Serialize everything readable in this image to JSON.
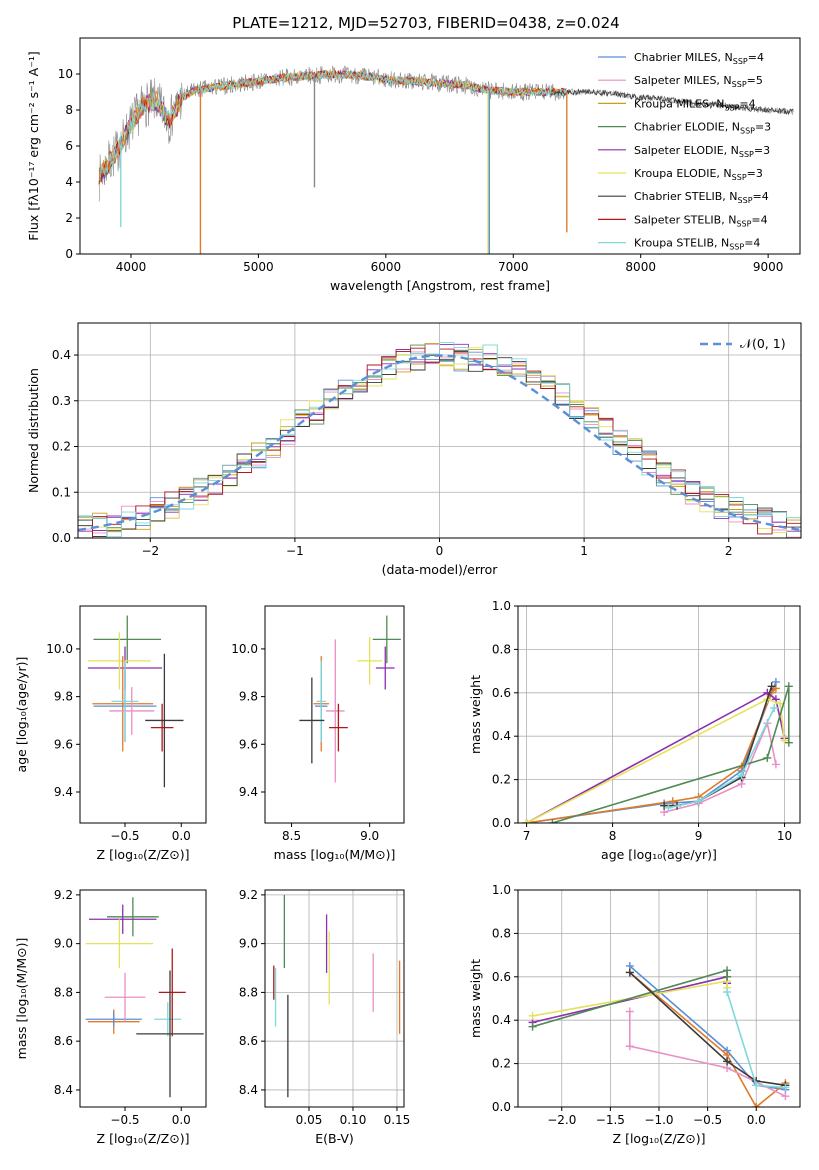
{
  "figure_title": "PLATE=1212, MJD=52703, FIBERID=0438, z=0.024",
  "colors": {
    "chabrier_miles": "#5b8fd6",
    "salpeter_miles": "#e98fc4",
    "kroupa_miles": "#c8a020",
    "chabrier_elodie": "#4f8a55",
    "salpeter_elodie": "#8e2eb0",
    "kroupa_elodie": "#e3e35a",
    "chabrier_stelib": "#3b3b3b",
    "salpeter_stelib": "#b01818",
    "kroupa_stelib": "#7fd8dc",
    "orange": "#e07a2a",
    "gray": "#888888",
    "gaussian": "#5b8fd6"
  },
  "chart_data": [
    {
      "id": "spectrum",
      "type": "line",
      "xlabel": "wavelength [Angstrom, rest frame]",
      "ylabel": "Flux [fλ10⁻¹⁷ erg cm⁻² s⁻¹ A⁻¹]",
      "xlim": [
        3600,
        9250
      ],
      "ylim": [
        0,
        12
      ],
      "xticks": [
        "4000",
        "5000",
        "6000",
        "7000",
        "8000",
        "9000"
      ],
      "yticks": [
        "0",
        "2",
        "4",
        "6",
        "8",
        "10"
      ],
      "legend_placement": "upper-right",
      "legend": [
        {
          "name": "Chabrier MILES, N",
          "sub": "SSP",
          "tail": "=4",
          "color_key": "chabrier_miles"
        },
        {
          "name": "Salpeter MILES, N",
          "sub": "SSP",
          "tail": "=5",
          "color_key": "salpeter_miles"
        },
        {
          "name": "Kroupa MILES, N",
          "sub": "SSP",
          "tail": "=4",
          "color_key": "kroupa_miles"
        },
        {
          "name": "Chabrier ELODIE, N",
          "sub": "SSP",
          "tail": "=3",
          "color_key": "chabrier_elodie"
        },
        {
          "name": "Salpeter ELODIE, N",
          "sub": "SSP",
          "tail": "=3",
          "color_key": "salpeter_elodie"
        },
        {
          "name": "Kroupa ELODIE, N",
          "sub": "SSP",
          "tail": "=3",
          "color_key": "kroupa_elodie"
        },
        {
          "name": "Chabrier STELIB, N",
          "sub": "SSP",
          "tail": "=4",
          "color_key": "chabrier_stelib"
        },
        {
          "name": "Salpeter STELIB, N",
          "sub": "SSP",
          "tail": "=4",
          "color_key": "salpeter_stelib"
        },
        {
          "name": "Kroupa STELIB, N",
          "sub": "SSP",
          "tail": "=4",
          "color_key": "kroupa_stelib"
        }
      ],
      "continuum": {
        "x": [
          3750,
          3800,
          3900,
          4000,
          4100,
          4200,
          4300,
          4400,
          4500,
          4600,
          4700,
          4800,
          5000,
          5200,
          5400,
          5600,
          5800,
          6000,
          6200,
          6400,
          6600,
          6800,
          7000,
          7200,
          7400,
          7600,
          7800,
          8000,
          8200,
          8400,
          8600,
          8800,
          9000,
          9200
        ],
        "y": [
          4.2,
          4.8,
          5.8,
          7.2,
          8.3,
          8.5,
          7.4,
          8.7,
          9.1,
          9.2,
          9.3,
          9.4,
          9.6,
          9.8,
          9.9,
          10.0,
          9.9,
          9.7,
          9.6,
          9.5,
          9.4,
          9.1,
          9.0,
          9.0,
          9.0,
          9.0,
          8.9,
          8.7,
          8.6,
          8.4,
          8.3,
          8.1,
          8.0,
          7.9
        ]
      },
      "observed_range": [
        3750,
        9200
      ],
      "model_range": [
        3750,
        7420
      ],
      "drops": [
        {
          "x": 4545,
          "y": 0.0,
          "series": "orange"
        },
        {
          "x": 6802,
          "y": 0.0,
          "series": "kroupa_elodie"
        },
        {
          "x": 6812,
          "y": 0.0,
          "series": "chabrier_miles"
        },
        {
          "x": 7420,
          "y": 1.2,
          "series": "orange"
        },
        {
          "x": 3920,
          "y": 1.5,
          "series": "kroupa_stelib"
        },
        {
          "x": 5440,
          "y": 3.7,
          "series": "gray"
        }
      ]
    },
    {
      "id": "residuals",
      "type": "histogram",
      "xlabel": "(data-model)/error",
      "ylabel": "Normed distribution",
      "xlim": [
        -2.5,
        2.5
      ],
      "ylim": [
        0,
        0.47
      ],
      "xticks": [
        "−2",
        "−1",
        "0",
        "1",
        "2"
      ],
      "yticks": [
        "0.0",
        "0.1",
        "0.2",
        "0.3",
        "0.4"
      ],
      "grid": true,
      "legend_placement": "upper-right",
      "gaussian_label": "𝒩(0, 1)",
      "bin_width": 0.1
    },
    {
      "id": "age_vs_z",
      "type": "errorbar",
      "xlabel": "Z [log₁₀(Z/Z⊙)]",
      "ylabel": "age  [log₁₀(age/yr)]",
      "xlim": [
        -0.9,
        0.22
      ],
      "ylim": [
        9.27,
        10.18
      ],
      "xticks": [
        "−0.5",
        "0.0"
      ],
      "yticks": [
        "9.4",
        "9.6",
        "9.8",
        "10.0"
      ],
      "points": [
        {
          "x": -0.48,
          "y": 10.04,
          "xerr": 0.3,
          "yerr": 0.1,
          "c": "chabrier_elodie"
        },
        {
          "x": -0.5,
          "y": 9.92,
          "xerr": 0.33,
          "yerr": 0.09,
          "c": "salpeter_elodie"
        },
        {
          "x": -0.55,
          "y": 9.95,
          "xerr": 0.28,
          "yerr": 0.12,
          "c": "kroupa_elodie"
        },
        {
          "x": -0.52,
          "y": 9.77,
          "xerr": 0.27,
          "yerr": 0.2,
          "c": "orange"
        },
        {
          "x": -0.5,
          "y": 9.76,
          "xerr": 0.28,
          "yerr": 0.15,
          "c": "chabrier_miles"
        },
        {
          "x": -0.44,
          "y": 9.74,
          "xerr": 0.2,
          "yerr": 0.1,
          "c": "salpeter_miles"
        },
        {
          "x": -0.5,
          "y": 9.78,
          "xerr": 0.12,
          "yerr": 0.17,
          "c": "kroupa_stelib"
        },
        {
          "x": -0.17,
          "y": 9.67,
          "xerr": 0.1,
          "yerr": 0.1,
          "c": "salpeter_stelib"
        },
        {
          "x": -0.15,
          "y": 9.7,
          "xerr": 0.17,
          "yerr": 0.28,
          "c": "chabrier_stelib"
        }
      ]
    },
    {
      "id": "age_vs_mass",
      "type": "errorbar",
      "xlabel": "mass [log₁₀(M/M⊙)]",
      "ylabel": "",
      "xlim": [
        8.33,
        9.22
      ],
      "ylim": [
        9.27,
        10.18
      ],
      "xticks": [
        "8.5",
        "9.0"
      ],
      "yticks": [
        "9.4",
        "9.6",
        "9.8",
        "10.0"
      ],
      "points": [
        {
          "x": 9.11,
          "y": 10.04,
          "xerr": 0.09,
          "yerr": 0.1,
          "c": "chabrier_elodie"
        },
        {
          "x": 9.1,
          "y": 9.92,
          "xerr": 0.06,
          "yerr": 0.09,
          "c": "salpeter_elodie"
        },
        {
          "x": 9.0,
          "y": 9.95,
          "xerr": 0.08,
          "yerr": 0.1,
          "c": "kroupa_elodie"
        },
        {
          "x": 8.69,
          "y": 9.77,
          "xerr": 0.05,
          "yerr": 0.2,
          "c": "orange"
        },
        {
          "x": 8.69,
          "y": 9.76,
          "xerr": 0.04,
          "yerr": 0.15,
          "c": "chabrier_miles"
        },
        {
          "x": 8.78,
          "y": 9.74,
          "xerr": 0.06,
          "yerr": 0.3,
          "c": "salpeter_miles"
        },
        {
          "x": 8.69,
          "y": 9.78,
          "xerr": 0.03,
          "yerr": 0.17,
          "c": "kroupa_stelib"
        },
        {
          "x": 8.8,
          "y": 9.67,
          "xerr": 0.06,
          "yerr": 0.1,
          "c": "salpeter_stelib"
        },
        {
          "x": 8.63,
          "y": 9.7,
          "xerr": 0.08,
          "yerr": 0.18,
          "c": "chabrier_stelib"
        }
      ]
    },
    {
      "id": "weight_vs_age",
      "type": "line",
      "xlabel": "age  [log₁₀(age/yr)]",
      "ylabel": "mass weight",
      "xlim": [
        6.9,
        10.18
      ],
      "ylim": [
        0,
        1.0
      ],
      "xticks": [
        "7",
        "8",
        "9",
        "10"
      ],
      "yticks": [
        "0.0",
        "0.2",
        "0.4",
        "0.6",
        "0.8",
        "1.0"
      ],
      "grid": true,
      "series": [
        {
          "c": "chabrier_miles",
          "x": [
            7.0,
            8.6,
            9.0,
            9.5,
            9.85,
            9.9
          ],
          "y": [
            0.0,
            0.09,
            0.1,
            0.24,
            0.6,
            0.65
          ]
        },
        {
          "c": "orange",
          "x": [
            7.0,
            8.7,
            9.0,
            9.5,
            9.85,
            9.9
          ],
          "y": [
            0.0,
            0.1,
            0.12,
            0.26,
            0.6,
            0.62
          ]
        },
        {
          "c": "salpeter_miles",
          "x": [
            8.6,
            9.0,
            9.5,
            9.8,
            9.9
          ],
          "y": [
            0.05,
            0.09,
            0.18,
            0.46,
            0.27
          ]
        },
        {
          "c": "salpeter_elodie",
          "x": [
            7.0,
            9.8,
            9.9,
            10.0
          ],
          "y": [
            0.0,
            0.6,
            0.57,
            0.39
          ]
        },
        {
          "c": "kroupa_elodie",
          "x": [
            7.0,
            9.8,
            9.95,
            10.0
          ],
          "y": [
            0.0,
            0.57,
            0.55,
            0.38
          ]
        },
        {
          "c": "chabrier_elodie",
          "x": [
            7.3,
            9.8,
            10.05,
            10.05
          ],
          "y": [
            0.0,
            0.3,
            0.63,
            0.37
          ]
        },
        {
          "c": "chabrier_stelib",
          "x": [
            8.6,
            8.75,
            9.0,
            9.5,
            9.85
          ],
          "y": [
            0.08,
            0.08,
            0.1,
            0.21,
            0.63
          ]
        },
        {
          "c": "kroupa_stelib",
          "x": [
            8.65,
            9.0,
            9.5,
            9.88
          ],
          "y": [
            0.07,
            0.1,
            0.22,
            0.53
          ]
        }
      ]
    },
    {
      "id": "mass_vs_z",
      "type": "errorbar",
      "xlabel": "Z [log₁₀(Z/Z⊙)]",
      "ylabel": "mass [log₁₀(M/M⊙)]",
      "xlim": [
        -0.9,
        0.22
      ],
      "ylim": [
        8.33,
        9.22
      ],
      "xticks": [
        "−0.5",
        "0.0"
      ],
      "yticks": [
        "8.4",
        "8.6",
        "8.8",
        "9.0",
        "9.2"
      ],
      "points": [
        {
          "x": -0.43,
          "y": 9.11,
          "xerr": 0.23,
          "yerr": 0.08,
          "c": "chabrier_elodie"
        },
        {
          "x": -0.52,
          "y": 9.1,
          "xerr": 0.3,
          "yerr": 0.06,
          "c": "salpeter_elodie"
        },
        {
          "x": -0.55,
          "y": 9.0,
          "xerr": 0.3,
          "yerr": 0.1,
          "c": "kroupa_elodie"
        },
        {
          "x": -0.6,
          "y": 8.68,
          "xerr": 0.23,
          "yerr": 0.05,
          "c": "orange"
        },
        {
          "x": -0.6,
          "y": 8.69,
          "xerr": 0.25,
          "yerr": 0.03,
          "c": "chabrier_miles"
        },
        {
          "x": -0.5,
          "y": 8.78,
          "xerr": 0.18,
          "yerr": 0.1,
          "c": "salpeter_miles"
        },
        {
          "x": -0.12,
          "y": 8.69,
          "xerr": 0.12,
          "yerr": 0.07,
          "c": "kroupa_stelib"
        },
        {
          "x": -0.08,
          "y": 8.8,
          "xerr": 0.12,
          "yerr": 0.18,
          "c": "salpeter_stelib"
        },
        {
          "x": -0.1,
          "y": 8.63,
          "xerr": 0.3,
          "yerr": 0.26,
          "c": "chabrier_stelib"
        }
      ]
    },
    {
      "id": "mass_vs_ebv",
      "type": "errorbar",
      "xlabel": "E(B-V)",
      "ylabel": "",
      "xlim": [
        0.0,
        0.158
      ],
      "ylim": [
        8.33,
        9.22
      ],
      "xticks": [
        "0.05",
        "0.10",
        "0.15"
      ],
      "yticks": [
        "8.4",
        "8.6",
        "8.8",
        "9.0",
        "9.2"
      ],
      "grid": true,
      "points": [
        {
          "x": 0.022,
          "y": 9.05,
          "xerr": 0.0,
          "yerr": 0.15,
          "c": "chabrier_elodie"
        },
        {
          "x": 0.07,
          "y": 9.0,
          "xerr": 0.0,
          "yerr": 0.12,
          "c": "salpeter_elodie"
        },
        {
          "x": 0.073,
          "y": 8.9,
          "xerr": 0.0,
          "yerr": 0.15,
          "c": "kroupa_elodie"
        },
        {
          "x": 0.153,
          "y": 8.78,
          "xerr": 0.0,
          "yerr": 0.15,
          "c": "orange"
        },
        {
          "x": 0.123,
          "y": 8.84,
          "xerr": 0.0,
          "yerr": 0.12,
          "c": "salpeter_miles"
        },
        {
          "x": 0.01,
          "y": 8.84,
          "xerr": 0.0,
          "yerr": 0.07,
          "c": "salpeter_stelib"
        },
        {
          "x": 0.012,
          "y": 8.78,
          "xerr": 0.0,
          "yerr": 0.12,
          "c": "kroupa_stelib"
        },
        {
          "x": 0.026,
          "y": 8.58,
          "xerr": 0.0,
          "yerr": 0.21,
          "c": "chabrier_stelib"
        }
      ]
    },
    {
      "id": "weight_vs_z",
      "type": "line",
      "xlabel": "Z [log₁₀(Z/Z⊙)]",
      "ylabel": "mass weight",
      "xlim": [
        -2.45,
        0.45
      ],
      "ylim": [
        0,
        1.0
      ],
      "xticks": [
        "−2.0",
        "−1.5",
        "−1.0",
        "−0.5",
        "0.0"
      ],
      "yticks": [
        "0.0",
        "0.2",
        "0.4",
        "0.6",
        "0.8",
        "1.0"
      ],
      "grid": true,
      "series": [
        {
          "c": "chabrier_miles",
          "x": [
            -1.3,
            -0.3,
            0.0,
            0.3
          ],
          "y": [
            0.65,
            0.26,
            0.1,
            0.08
          ]
        },
        {
          "c": "orange",
          "x": [
            -1.3,
            -0.3,
            0.0,
            0.3
          ],
          "y": [
            0.62,
            0.24,
            0.0,
            0.11
          ]
        },
        {
          "c": "salpeter_miles",
          "x": [
            -1.3,
            -1.3,
            -0.3,
            0.3
          ],
          "y": [
            0.44,
            0.28,
            0.18,
            0.05
          ]
        },
        {
          "c": "salpeter_elodie",
          "x": [
            -2.3,
            -0.3,
            -0.3
          ],
          "y": [
            0.39,
            0.6,
            0.57
          ]
        },
        {
          "c": "kroupa_elodie",
          "x": [
            -2.3,
            -0.3,
            -0.3
          ],
          "y": [
            0.42,
            0.58,
            0.55
          ]
        },
        {
          "c": "chabrier_elodie",
          "x": [
            -2.3,
            -0.3,
            -0.3
          ],
          "y": [
            0.37,
            0.63,
            0.6
          ]
        },
        {
          "c": "chabrier_stelib",
          "x": [
            -1.3,
            -0.3,
            0.0,
            0.3
          ],
          "y": [
            0.62,
            0.21,
            0.12,
            0.1
          ]
        },
        {
          "c": "kroupa_stelib",
          "x": [
            -0.3,
            0.0,
            0.3
          ],
          "y": [
            0.53,
            0.1,
            0.09
          ]
        }
      ]
    }
  ]
}
